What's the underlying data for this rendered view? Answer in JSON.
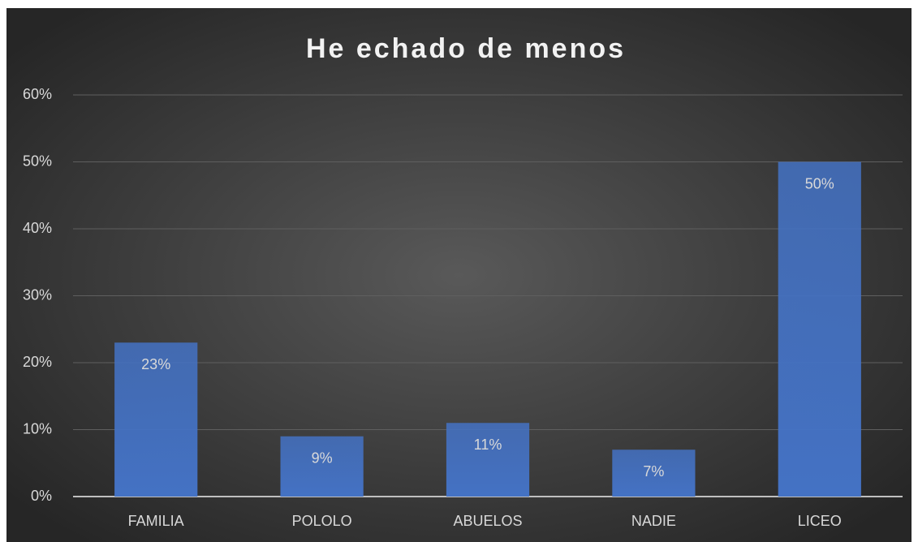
{
  "chart_data": {
    "type": "bar",
    "title": "He echado de menos",
    "categories": [
      "FAMILIA",
      "POLOLO",
      "ABUELOS",
      "NADIE",
      "LICEO"
    ],
    "values": [
      23,
      9,
      11,
      7,
      50
    ],
    "value_labels": [
      "23%",
      "9%",
      "11%",
      "7%",
      "50%"
    ],
    "color": "#4472c4",
    "ylim": [
      0,
      60
    ],
    "yticks": [
      {
        "value": 0,
        "label": "0%"
      },
      {
        "value": 10,
        "label": "10%"
      },
      {
        "value": 20,
        "label": "20%"
      },
      {
        "value": 30,
        "label": "30%"
      },
      {
        "value": 40,
        "label": "40%"
      },
      {
        "value": 50,
        "label": "50%"
      },
      {
        "value": 60,
        "label": "60%"
      }
    ],
    "grid": true
  }
}
